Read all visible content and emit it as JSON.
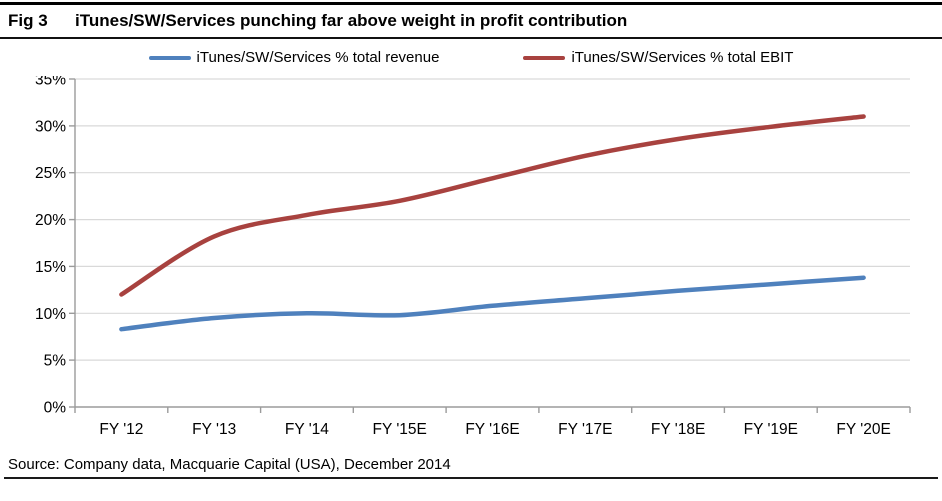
{
  "figure": {
    "label": "Fig 3",
    "title": "iTunes/SW/Services punching far above weight in profit contribution",
    "source": "Source: Company data, Macquarie Capital (USA), December 2014"
  },
  "chart_data": {
    "type": "line",
    "title": "iTunes/SW/Services punching far above weight in profit contribution",
    "categories": [
      "FY '12",
      "FY '13",
      "FY '14",
      "FY '15E",
      "FY '16E",
      "FY '17E",
      "FY '18E",
      "FY '19E",
      "FY '20E"
    ],
    "series": [
      {
        "name": "iTunes/SW/Services % total revenue",
        "color": "#4f81bd",
        "values": [
          8.3,
          9.5,
          10.0,
          9.8,
          10.8,
          11.6,
          12.4,
          13.1,
          13.8
        ]
      },
      {
        "name": "iTunes/SW/Services % total EBIT",
        "color": "#a8423f",
        "values": [
          12.0,
          18.2,
          20.5,
          22.0,
          24.4,
          26.8,
          28.6,
          29.9,
          31.0
        ]
      }
    ],
    "xlabel": "",
    "ylabel": "",
    "ylim": [
      0,
      35
    ],
    "ytick_step": 5,
    "ytick_labels": [
      "0%",
      "5%",
      "10%",
      "15%",
      "20%",
      "25%",
      "30%",
      "35%"
    ],
    "grid": true,
    "legend_position": "top",
    "smoothed_lines": true
  },
  "colors": {
    "grid": "#d9d9d9",
    "axis": "#9b9b9b",
    "tick_text": "#000000",
    "rule": "#000000"
  }
}
